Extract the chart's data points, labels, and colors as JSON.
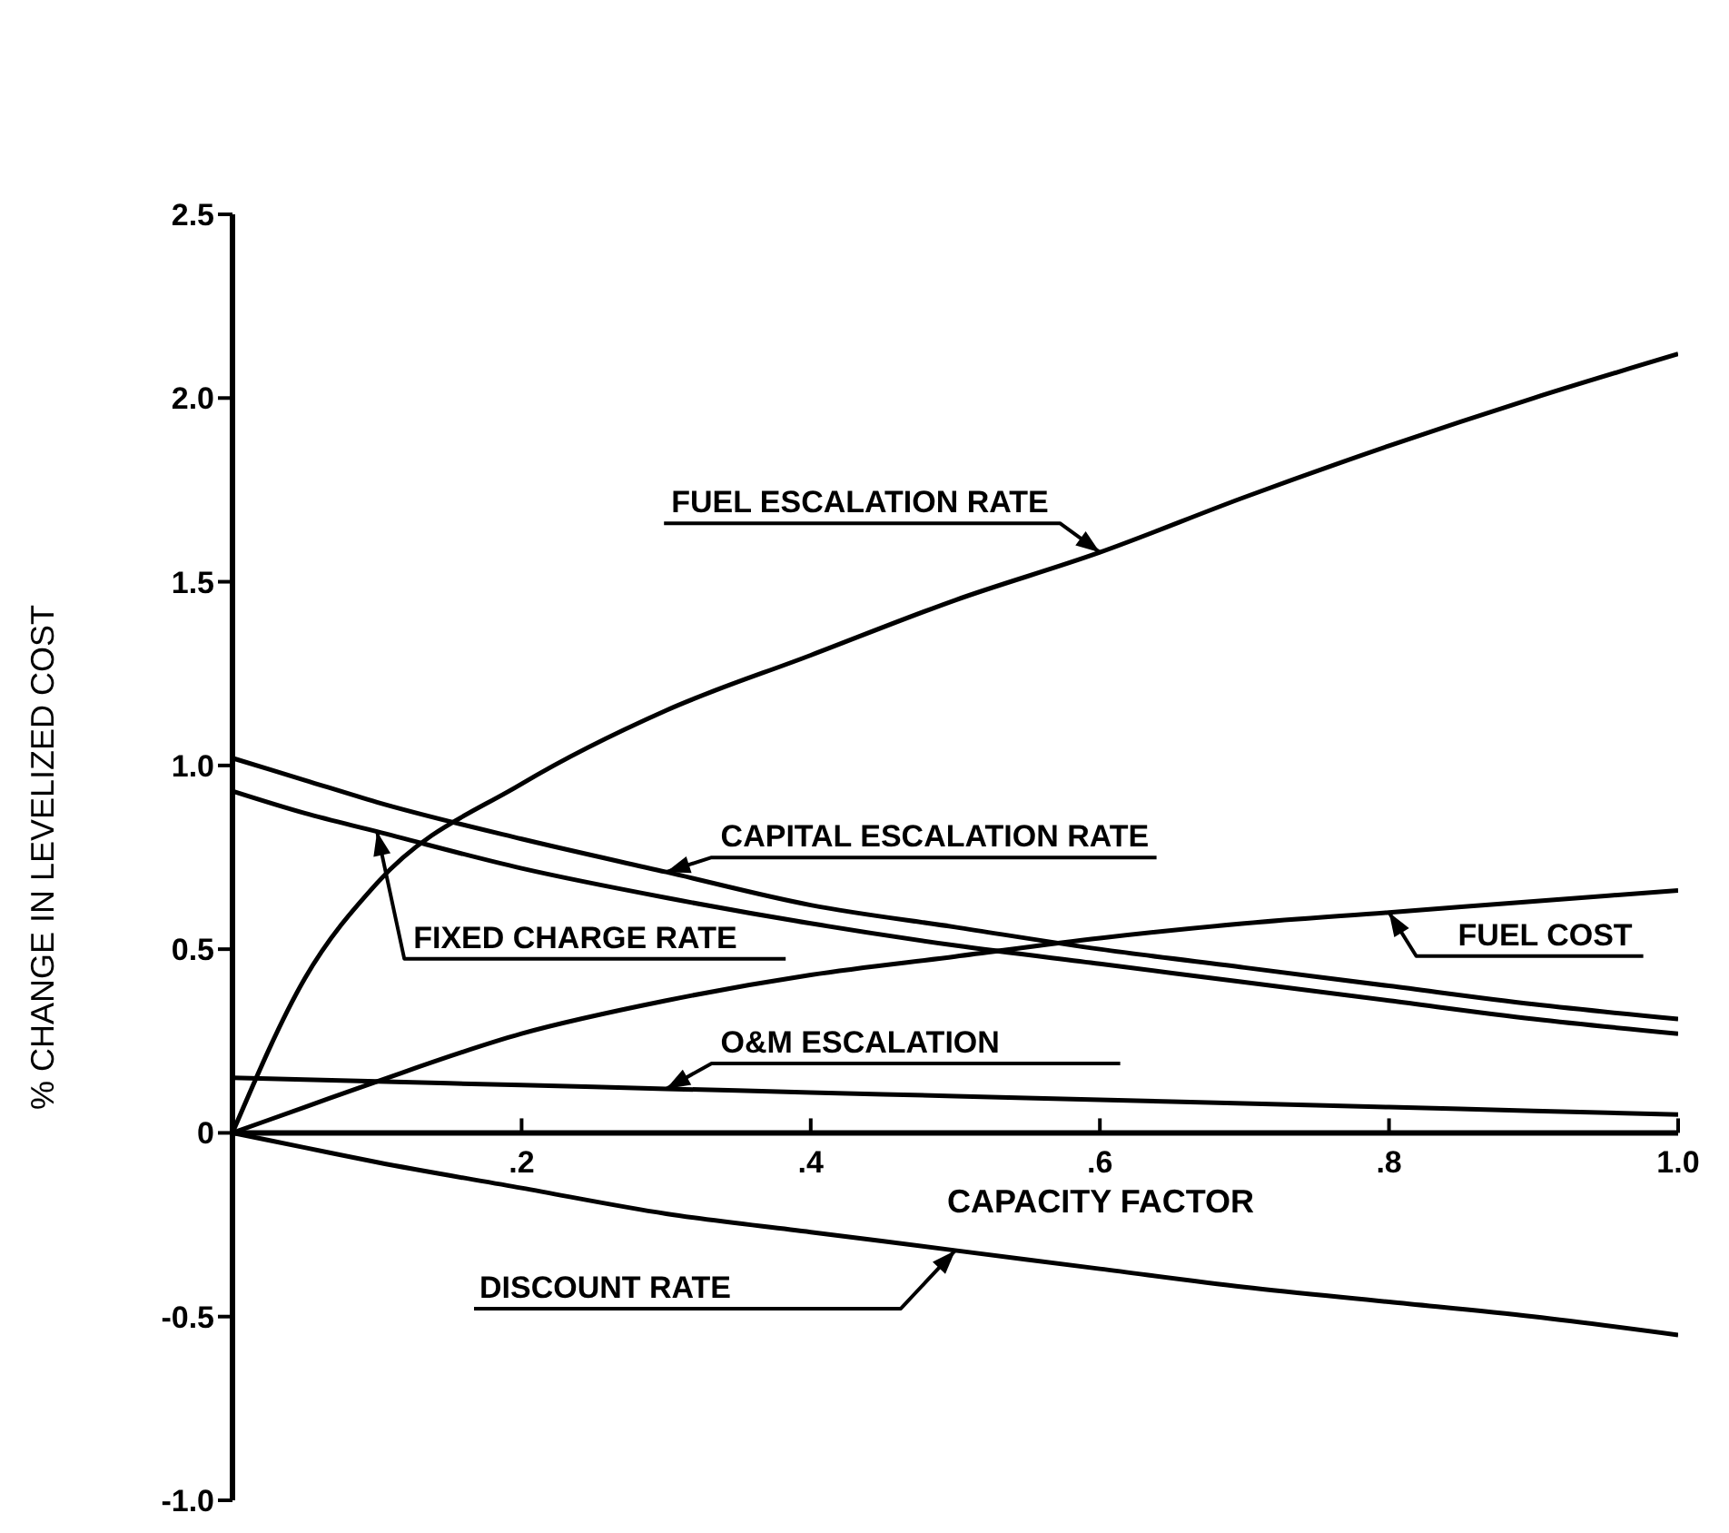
{
  "chart_data": {
    "type": "line",
    "xlabel": "CAPACITY FACTOR",
    "ylabel": "% CHANGE IN LEVELIZED COST",
    "x": [
      0,
      0.05,
      0.1,
      0.2,
      0.3,
      0.4,
      0.5,
      0.6,
      0.7,
      0.8,
      0.9,
      1.0
    ],
    "series": [
      {
        "name": "FUEL ESCALATION RATE",
        "color": "#000000",
        "values": [
          0,
          0.42,
          0.68,
          0.95,
          1.15,
          1.3,
          1.45,
          1.58,
          1.73,
          1.87,
          2.0,
          2.12
        ]
      },
      {
        "name": "CAPITAL ESCALATION RATE",
        "color": "#000000",
        "values": [
          1.02,
          0.96,
          0.9,
          0.8,
          0.71,
          0.62,
          0.56,
          0.5,
          0.45,
          0.4,
          0.35,
          0.31
        ]
      },
      {
        "name": "FIXED CHARGE RATE",
        "color": "#000000",
        "values": [
          0.93,
          0.87,
          0.82,
          0.72,
          0.64,
          0.57,
          0.51,
          0.46,
          0.41,
          0.36,
          0.31,
          0.27
        ]
      },
      {
        "name": "FUEL COST",
        "color": "#000000",
        "values": [
          0,
          0.07,
          0.14,
          0.27,
          0.36,
          0.43,
          0.48,
          0.53,
          0.57,
          0.6,
          0.63,
          0.66
        ]
      },
      {
        "name": "O&M  ESCALATION",
        "color": "#000000",
        "values": [
          0.15,
          0.145,
          0.14,
          0.13,
          0.12,
          0.11,
          0.1,
          0.09,
          0.08,
          0.07,
          0.06,
          0.05
        ]
      },
      {
        "name": "DISCOUNT RATE",
        "color": "#000000",
        "values": [
          0,
          -0.04,
          -0.08,
          -0.15,
          -0.22,
          -0.27,
          -0.32,
          -0.37,
          -0.42,
          -0.46,
          -0.5,
          -0.55
        ]
      }
    ],
    "xlim": [
      0,
      1.0
    ],
    "xticks": [
      {
        "value": 0.2,
        "label": ".2"
      },
      {
        "value": 0.4,
        "label": ".4"
      },
      {
        "value": 0.6,
        "label": ".6"
      },
      {
        "value": 0.8,
        "label": ".8"
      },
      {
        "value": 1.0,
        "label": "1.0"
      }
    ],
    "ylim": [
      -1.0,
      2.5
    ],
    "yticks": [
      {
        "value": -1.0,
        "label": "-1.0"
      },
      {
        "value": -0.5,
        "label": "-0.5"
      },
      0,
      {
        "value": 0.5,
        "label": "0.5"
      },
      {
        "value": 1.0,
        "label": "1.0"
      },
      {
        "value": 1.5,
        "label": "1.5"
      },
      {
        "value": 2.0,
        "label": "2.0"
      },
      {
        "value": 2.5,
        "label": "2.5"
      }
    ],
    "marker": "none",
    "line_style": "solid"
  }
}
